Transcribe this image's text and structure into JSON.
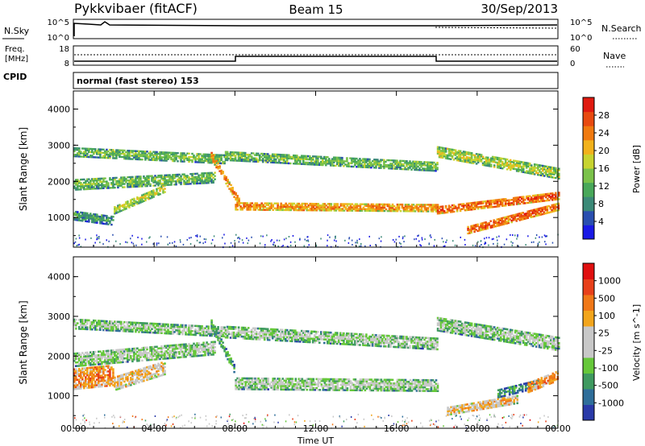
{
  "header": {
    "radar": "Pykkvibaer (fitACF)",
    "beam": "Beam 15",
    "date": "30/Sep/2013"
  },
  "strip1": {
    "left_label": "N.Sky",
    "left_ticks": [
      "10^5",
      "10^0"
    ],
    "right_label": "N.Search",
    "right_ticks": [
      "10^5",
      "10^0"
    ]
  },
  "strip2": {
    "left_label_1": "Freq.",
    "left_label_2": "[MHz]",
    "left_ticks": [
      "18",
      "8"
    ],
    "right_label": "Nave",
    "right_ticks": [
      "60",
      "0"
    ]
  },
  "cpid": {
    "label": "CPID",
    "text": "normal (fast stereo) 153"
  },
  "chart_data": [
    {
      "type": "heatmap",
      "name": "power",
      "ylabel": "Slant Range [km]",
      "yticks": [
        "1000",
        "2000",
        "3000",
        "4000"
      ],
      "ylim": [
        180,
        4500
      ],
      "xlim": [
        0,
        24
      ],
      "colorbar": {
        "label": "Power [dB]",
        "ticks": [
          "4",
          "8",
          "12",
          "16",
          "20",
          "24",
          "28"
        ],
        "colors": [
          "#1a1ae6",
          "#2a4fb0",
          "#3c8a78",
          "#49a85a",
          "#7bc24a",
          "#c8d430",
          "#f2b21c",
          "#f07a10",
          "#e84a10",
          "#e01a10"
        ]
      },
      "bands": [
        {
          "start": 0.0,
          "end": 2.0,
          "from": 1050,
          "to": 900,
          "width": 260,
          "level": 3
        },
        {
          "start": 0.0,
          "end": 7.0,
          "from": 1900,
          "to": 2100,
          "width": 300,
          "level": 4
        },
        {
          "start": 0.0,
          "end": 7.5,
          "from": 2800,
          "to": 2600,
          "width": 250,
          "level": 4
        },
        {
          "start": 2.0,
          "end": 4.5,
          "from": 1200,
          "to": 1800,
          "width": 220,
          "level": 5
        },
        {
          "start": 6.8,
          "end": 8.2,
          "from": 2700,
          "to": 1400,
          "width": 220,
          "level": 7
        },
        {
          "start": 8.0,
          "end": 18.0,
          "from": 1300,
          "to": 1250,
          "width": 200,
          "level": 7
        },
        {
          "start": 7.5,
          "end": 18.0,
          "from": 2700,
          "to": 2400,
          "width": 260,
          "level": 4
        },
        {
          "start": 18.0,
          "end": 24.0,
          "from": 2800,
          "to": 2200,
          "width": 280,
          "level": 5
        },
        {
          "start": 18.0,
          "end": 24.0,
          "from": 1200,
          "to": 1600,
          "width": 220,
          "level": 8
        },
        {
          "start": 19.5,
          "end": 24.0,
          "from": 650,
          "to": 1300,
          "width": 220,
          "level": 8
        }
      ]
    },
    {
      "type": "heatmap",
      "name": "velocity",
      "ylabel": "Slant Range [km]",
      "yticks": [
        "1000",
        "2000",
        "3000",
        "4000"
      ],
      "ylim": [
        180,
        4500
      ],
      "xlim": [
        0,
        24
      ],
      "xlabel": "Time UT",
      "xticks": [
        "00:00",
        "04:00",
        "08:00",
        "12:00",
        "16:00",
        "20:00",
        "00:00"
      ],
      "colorbar": {
        "label": "Velocity [m s^-1]",
        "ticks": [
          "1000",
          "500",
          "100",
          "25",
          "-25",
          "-100",
          "-500",
          "-1000"
        ],
        "colors": [
          "#2a3aa8",
          "#2f6e9a",
          "#3f9a60",
          "#66c83a",
          "#c8c8c8",
          "#c8c8c8",
          "#f2a51c",
          "#f07818",
          "#e8401a",
          "#e01010"
        ]
      },
      "bands": [
        {
          "start": 0.0,
          "end": 2.0,
          "from": 1400,
          "to": 1500,
          "width": 500,
          "level": 7
        },
        {
          "start": 0.0,
          "end": 7.0,
          "from": 1900,
          "to": 2200,
          "width": 350,
          "level": 4
        },
        {
          "start": 0.0,
          "end": 7.5,
          "from": 2800,
          "to": 2600,
          "width": 250,
          "level": 4
        },
        {
          "start": 2.0,
          "end": 4.5,
          "from": 1300,
          "to": 1700,
          "width": 350,
          "level": 6
        },
        {
          "start": 6.8,
          "end": 8.0,
          "from": 2800,
          "to": 1600,
          "width": 200,
          "level": 3
        },
        {
          "start": 8.0,
          "end": 18.0,
          "from": 1300,
          "to": 1250,
          "width": 300,
          "level": 4
        },
        {
          "start": 7.5,
          "end": 18.0,
          "from": 2600,
          "to": 2300,
          "width": 300,
          "level": 4
        },
        {
          "start": 18.0,
          "end": 24.0,
          "from": 2800,
          "to": 2300,
          "width": 350,
          "level": 4
        },
        {
          "start": 21.0,
          "end": 23.0,
          "from": 1050,
          "to": 1300,
          "width": 220,
          "level": 2
        },
        {
          "start": 18.5,
          "end": 22.0,
          "from": 600,
          "to": 900,
          "width": 200,
          "level": 6
        },
        {
          "start": 22.5,
          "end": 24.0,
          "from": 1200,
          "to": 1500,
          "width": 250,
          "level": 7
        }
      ]
    }
  ]
}
